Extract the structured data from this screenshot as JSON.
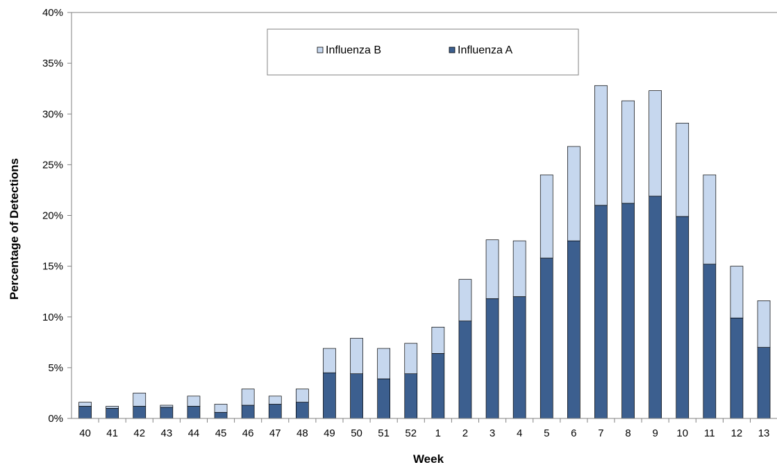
{
  "chart_data": {
    "type": "bar",
    "stacked": true,
    "title": "",
    "xlabel": "Week",
    "ylabel": "Percentage of Detections",
    "ylim": [
      0,
      40
    ],
    "yticks": [
      "0%",
      "5%",
      "10%",
      "15%",
      "20%",
      "25%",
      "30%",
      "35%",
      "40%"
    ],
    "categories": [
      "40",
      "41",
      "42",
      "43",
      "44",
      "45",
      "46",
      "47",
      "48",
      "49",
      "50",
      "51",
      "52",
      "1",
      "2",
      "3",
      "4",
      "5",
      "6",
      "7",
      "8",
      "9",
      "10",
      "11",
      "12",
      "13"
    ],
    "series": [
      {
        "name": "Influenza A",
        "color": "#3c5f8f",
        "values": [
          1.2,
          1.0,
          1.2,
          1.1,
          1.2,
          0.6,
          1.3,
          1.4,
          1.6,
          4.5,
          4.4,
          3.9,
          4.4,
          6.4,
          9.6,
          11.8,
          12.0,
          15.8,
          17.5,
          21.0,
          21.2,
          21.9,
          19.9,
          15.2,
          9.9,
          7.0
        ]
      },
      {
        "name": "Influenza B",
        "color": "#c6d7ee",
        "values": [
          0.4,
          0.2,
          1.3,
          0.2,
          1.0,
          0.8,
          1.6,
          0.8,
          1.3,
          2.4,
          3.5,
          3.0,
          3.0,
          2.6,
          4.1,
          5.8,
          5.5,
          8.2,
          9.3,
          11.8,
          10.1,
          10.4,
          9.2,
          8.8,
          5.1,
          4.6
        ]
      }
    ],
    "legend": {
      "placement": "top-center",
      "entries": [
        "Influenza B",
        "Influenza A"
      ]
    },
    "grid": false
  }
}
